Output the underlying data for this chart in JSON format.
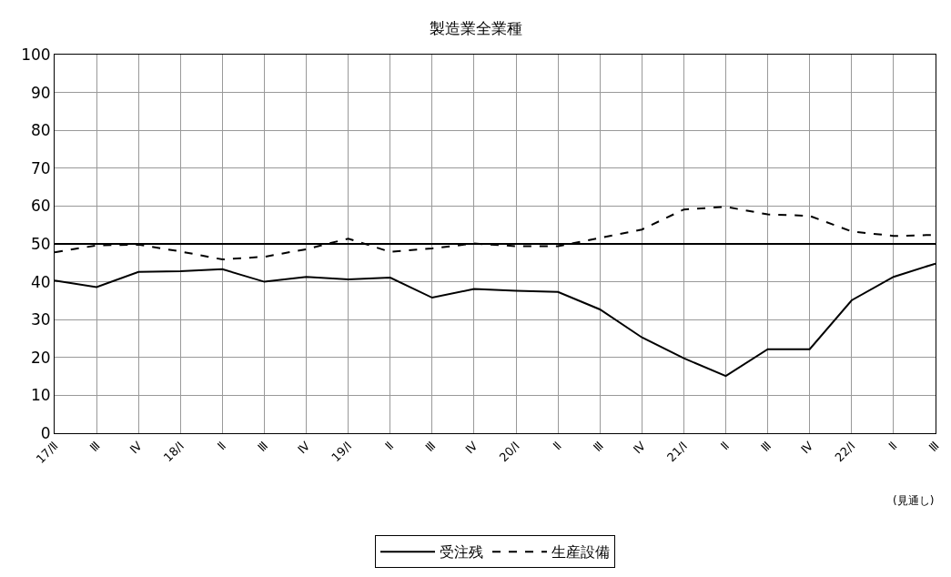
{
  "chart_data": {
    "type": "line",
    "title": "製造業全業種",
    "categories": [
      "17/Ⅱ",
      "Ⅲ",
      "Ⅳ",
      "18/Ⅰ",
      "Ⅱ",
      "Ⅲ",
      "Ⅳ",
      "19/Ⅰ",
      "Ⅱ",
      "Ⅲ",
      "Ⅳ",
      "20/Ⅰ",
      "Ⅱ",
      "Ⅲ",
      "Ⅳ",
      "21/Ⅰ",
      "Ⅱ",
      "Ⅲ",
      "Ⅳ",
      "22/Ⅰ",
      "Ⅱ",
      "Ⅲ"
    ],
    "series": [
      {
        "name": "受注残",
        "color": "#000000",
        "line_style": "solid",
        "values": [
          40.3,
          38.6,
          42.6,
          42.8,
          43.3,
          40.0,
          41.3,
          40.6,
          41.1,
          35.8,
          38.1,
          37.6,
          37.3,
          32.7,
          25.3,
          19.8,
          15.1,
          22.2,
          22.2,
          35.1,
          41.3,
          44.8
        ]
      },
      {
        "name": "生産設備",
        "color": "#000000",
        "line_style": "dashed",
        "values": [
          47.8,
          49.6,
          49.8,
          48.0,
          45.9,
          46.6,
          48.6,
          51.4,
          47.9,
          48.8,
          50.1,
          49.4,
          49.4,
          51.6,
          53.8,
          59.1,
          59.8,
          57.8,
          57.4,
          53.3,
          52.1,
          52.4
        ]
      }
    ],
    "ylim": [
      0,
      100
    ],
    "yticks": [
      0,
      10,
      20,
      30,
      40,
      50,
      60,
      70,
      80,
      90,
      100
    ],
    "ref_lines": [
      {
        "axis": "y",
        "value": 50,
        "color": "#000000",
        "line_style": "solid"
      }
    ],
    "annotations": [
      "(見通し)"
    ],
    "grid": true,
    "legend": "bottom",
    "marker": "none"
  }
}
